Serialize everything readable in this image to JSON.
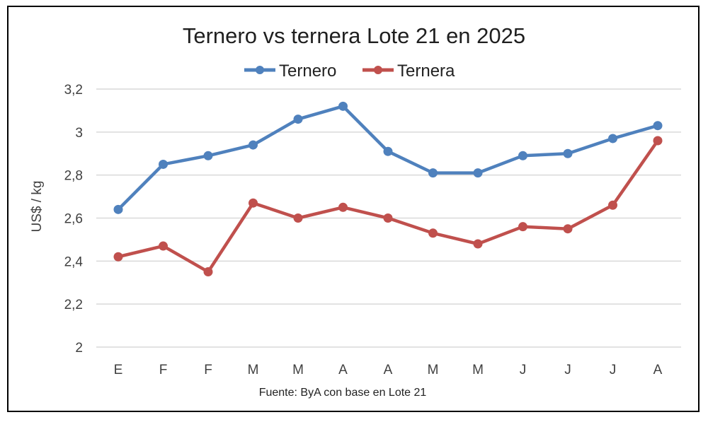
{
  "chart_data": {
    "type": "line",
    "title": "Ternero vs ternera Lote 21 en 2025",
    "xlabel": "",
    "ylabel": "US$ / kg",
    "source": "Fuente: ByA con base en Lote 21",
    "categories": [
      "E",
      "F",
      "F",
      "M",
      "M",
      "A",
      "A",
      "M",
      "M",
      "J",
      "J",
      "J",
      "A"
    ],
    "ylim": [
      2,
      3.2
    ],
    "yticks": [
      "2",
      "2,2",
      "2,4",
      "2,6",
      "2,8",
      "3",
      "3,2"
    ],
    "ytick_values": [
      2,
      2.2,
      2.4,
      2.6,
      2.8,
      3,
      3.2
    ],
    "grid": true,
    "legend": "top-center",
    "series": [
      {
        "name": "Ternero",
        "color": "#4f81bd",
        "values": [
          2.64,
          2.85,
          2.89,
          2.94,
          3.06,
          3.12,
          2.91,
          2.81,
          2.81,
          2.89,
          2.9,
          2.97,
          3.03
        ]
      },
      {
        "name": "Ternera",
        "color": "#c0504d",
        "values": [
          2.42,
          2.47,
          2.35,
          2.67,
          2.6,
          2.65,
          2.6,
          2.53,
          2.48,
          2.56,
          2.55,
          2.66,
          2.96
        ]
      }
    ]
  }
}
